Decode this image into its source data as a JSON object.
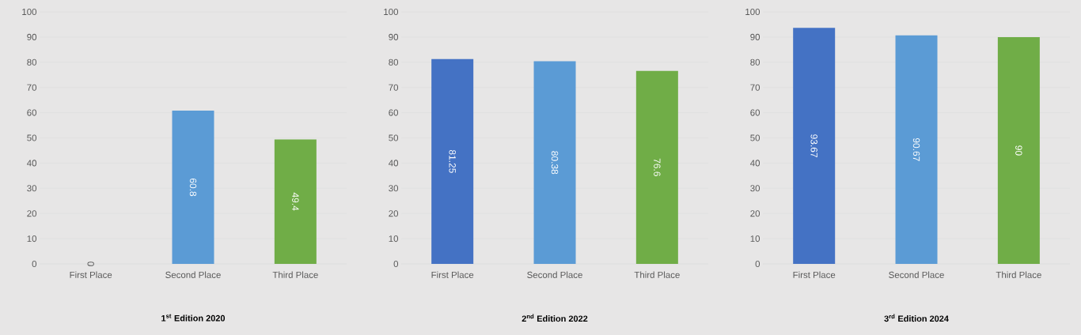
{
  "chart_data": [
    {
      "type": "bar",
      "title": "1$^{st}$ Edition 2020",
      "categories": [
        "First Place",
        "Second Place",
        "Third Place"
      ],
      "values": [
        0,
        60.8,
        49.4
      ],
      "colors": [
        "#4472c4",
        "#5b9bd5",
        "#70ad47"
      ],
      "ylim": [
        0,
        100
      ],
      "yticks": [
        0,
        10,
        20,
        30,
        40,
        50,
        60,
        70,
        80,
        90,
        100
      ],
      "grid": "y",
      "data_labels": true
    },
    {
      "type": "bar",
      "title": "2$^{nd}$ Edition 2022",
      "categories": [
        "First Place",
        "Second Place",
        "Third Place"
      ],
      "values": [
        81.25,
        80.38,
        76.6
      ],
      "colors": [
        "#4472c4",
        "#5b9bd5",
        "#70ad47"
      ],
      "ylim": [
        0,
        100
      ],
      "yticks": [
        0,
        10,
        20,
        30,
        40,
        50,
        60,
        70,
        80,
        90,
        100
      ],
      "grid": "y",
      "data_labels": true
    },
    {
      "type": "bar",
      "title": "3$^{rd}$ Edition 2024",
      "categories": [
        "First Place",
        "Second Place",
        "Third Place"
      ],
      "values": [
        93.67,
        90.67,
        90
      ],
      "colors": [
        "#4472c4",
        "#5b9bd5",
        "#70ad47"
      ],
      "ylim": [
        0,
        100
      ],
      "yticks": [
        0,
        10,
        20,
        30,
        40,
        50,
        60,
        70,
        80,
        90,
        100
      ],
      "grid": "y",
      "data_labels": true
    }
  ]
}
